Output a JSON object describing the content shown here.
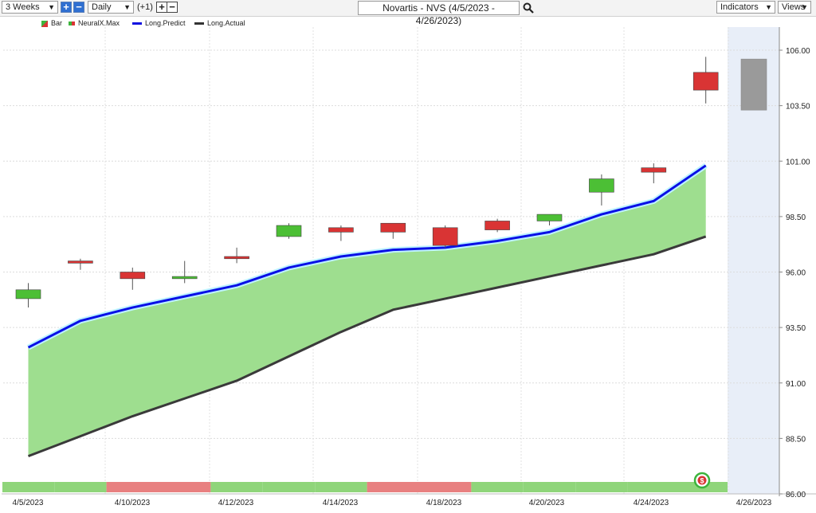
{
  "toolbar": {
    "period": "3 Weeks",
    "interval": "Daily",
    "offset": "(+1)",
    "title": "Novartis - NVS (4/5/2023 - 4/26/2023)",
    "indicators_label": "Indicators",
    "views_label": "Views",
    "icons": [
      "plus-icon",
      "minus-icon",
      "search-icon",
      "chevron-down-icon"
    ]
  },
  "legend": [
    {
      "label": "Bar",
      "color": "#3cb43c"
    },
    {
      "label": "NeuralX.Max",
      "color": "#d93434"
    },
    {
      "label": "Long.Predict",
      "color": "#1010e0"
    },
    {
      "label": "Long.Actual",
      "color": "#333333"
    }
  ],
  "colors": {
    "up": "#4cbf35",
    "down": "#d93434",
    "predict": "#0a10e6",
    "actual": "#3a3a3a",
    "fill": "#9ede8f",
    "forecast_bg": "#e8eef8",
    "strip_green": "#8fd57a",
    "strip_red": "#e88080",
    "gray_bar": "#9a9a9a"
  },
  "chart_data": {
    "type": "candlestick",
    "title": "Novartis - NVS (4/5/2023 - 4/26/2023)",
    "ylim": [
      86.0,
      107.5
    ],
    "y_ticks": [
      "106.00",
      "103.50",
      "101.00",
      "98.50",
      "96.00",
      "93.50",
      "91.00",
      "88.50",
      "86.00"
    ],
    "x_labels": [
      "4/5/2023",
      "4/10/2023",
      "4/12/2023",
      "4/14/2023",
      "4/18/2023",
      "4/20/2023",
      "4/24/2023",
      "4/26/2023"
    ],
    "grid": true,
    "candles": [
      {
        "open": 94.8,
        "high": 95.5,
        "low": 94.4,
        "close": 95.2
      },
      {
        "open": 96.5,
        "high": 96.6,
        "low": 96.1,
        "close": 96.4
      },
      {
        "open": 96.0,
        "high": 96.2,
        "low": 95.2,
        "close": 95.7
      },
      {
        "open": 95.7,
        "high": 96.5,
        "low": 95.5,
        "close": 95.8
      },
      {
        "open": 96.7,
        "high": 97.1,
        "low": 96.4,
        "close": 96.6
      },
      {
        "open": 97.6,
        "high": 98.2,
        "low": 97.5,
        "close": 98.1
      },
      {
        "open": 98.0,
        "high": 98.1,
        "low": 97.4,
        "close": 97.8
      },
      {
        "open": 98.2,
        "high": 98.2,
        "low": 97.5,
        "close": 97.8
      },
      {
        "open": 98.0,
        "high": 98.1,
        "low": 97.1,
        "close": 97.2
      },
      {
        "open": 98.3,
        "high": 98.4,
        "low": 97.8,
        "close": 97.9
      },
      {
        "open": 98.3,
        "high": 98.6,
        "low": 98.1,
        "close": 98.6
      },
      {
        "open": 99.6,
        "high": 100.4,
        "low": 99.0,
        "close": 100.2
      },
      {
        "open": 100.7,
        "high": 100.9,
        "low": 100.0,
        "close": 100.5
      },
      {
        "open": 105.0,
        "high": 105.7,
        "low": 103.6,
        "close": 104.2
      }
    ],
    "forecast_bar": {
      "top": 105.6,
      "bottom": 103.3
    },
    "series": [
      {
        "name": "Long.Predict",
        "values": [
          92.6,
          93.8,
          94.4,
          94.9,
          95.4,
          96.2,
          96.7,
          97.0,
          97.1,
          97.4,
          97.8,
          98.6,
          99.2,
          100.8
        ]
      },
      {
        "name": "Long.Actual",
        "values": [
          87.7,
          88.6,
          89.5,
          90.3,
          91.1,
          92.2,
          93.3,
          94.3,
          94.8,
          95.3,
          95.8,
          96.3,
          96.8,
          97.6
        ]
      }
    ],
    "strip": [
      "green",
      "green",
      "red",
      "red",
      "green",
      "green",
      "green",
      "red",
      "red",
      "green",
      "green",
      "green",
      "green",
      "green"
    ]
  }
}
